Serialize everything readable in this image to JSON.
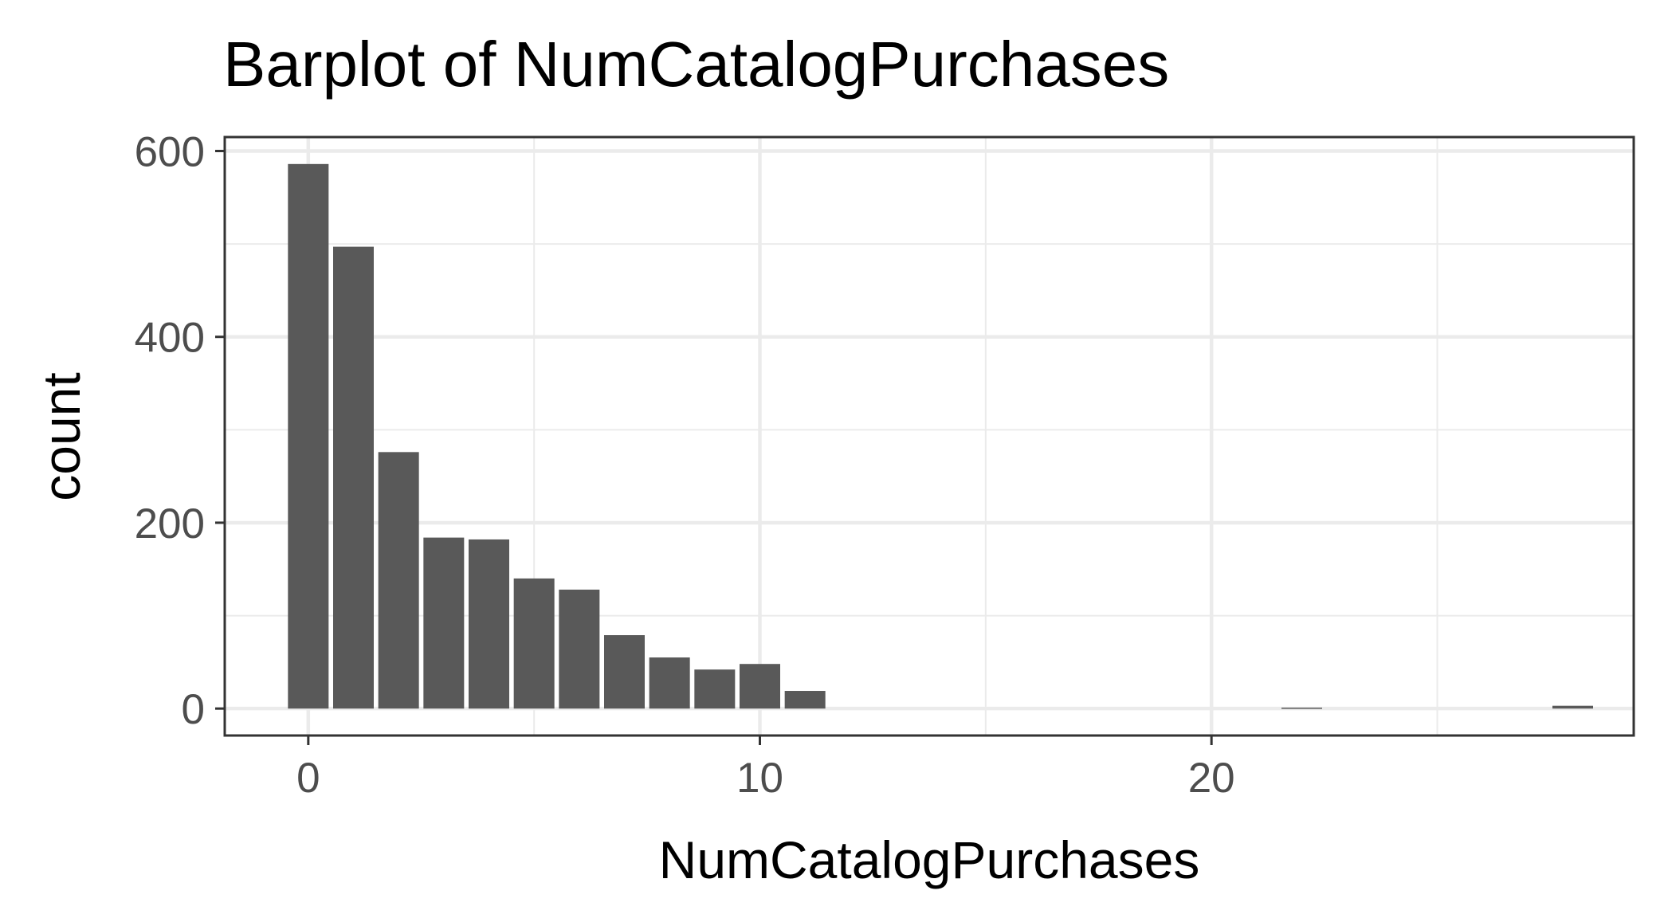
{
  "chart_data": {
    "type": "bar",
    "title": "Barplot of NumCatalogPurchases",
    "xlabel": "NumCatalogPurchases",
    "ylabel": "count",
    "xlim": [
      -1.85,
      29.35
    ],
    "ylim": [
      -29,
      615
    ],
    "x_ticks": [
      0,
      10,
      20
    ],
    "x_minor_ticks": [
      5,
      15,
      25
    ],
    "y_ticks": [
      0,
      200,
      400,
      600
    ],
    "y_minor_ticks": [
      100,
      300,
      500
    ],
    "grid": true,
    "legend": "none",
    "bar_color": "#595959",
    "x": [
      0,
      1,
      2,
      3,
      4,
      5,
      6,
      7,
      8,
      9,
      10,
      11,
      22,
      28
    ],
    "values": [
      586,
      497,
      276,
      184,
      182,
      140,
      128,
      79,
      55,
      42,
      48,
      19,
      1,
      3
    ]
  }
}
